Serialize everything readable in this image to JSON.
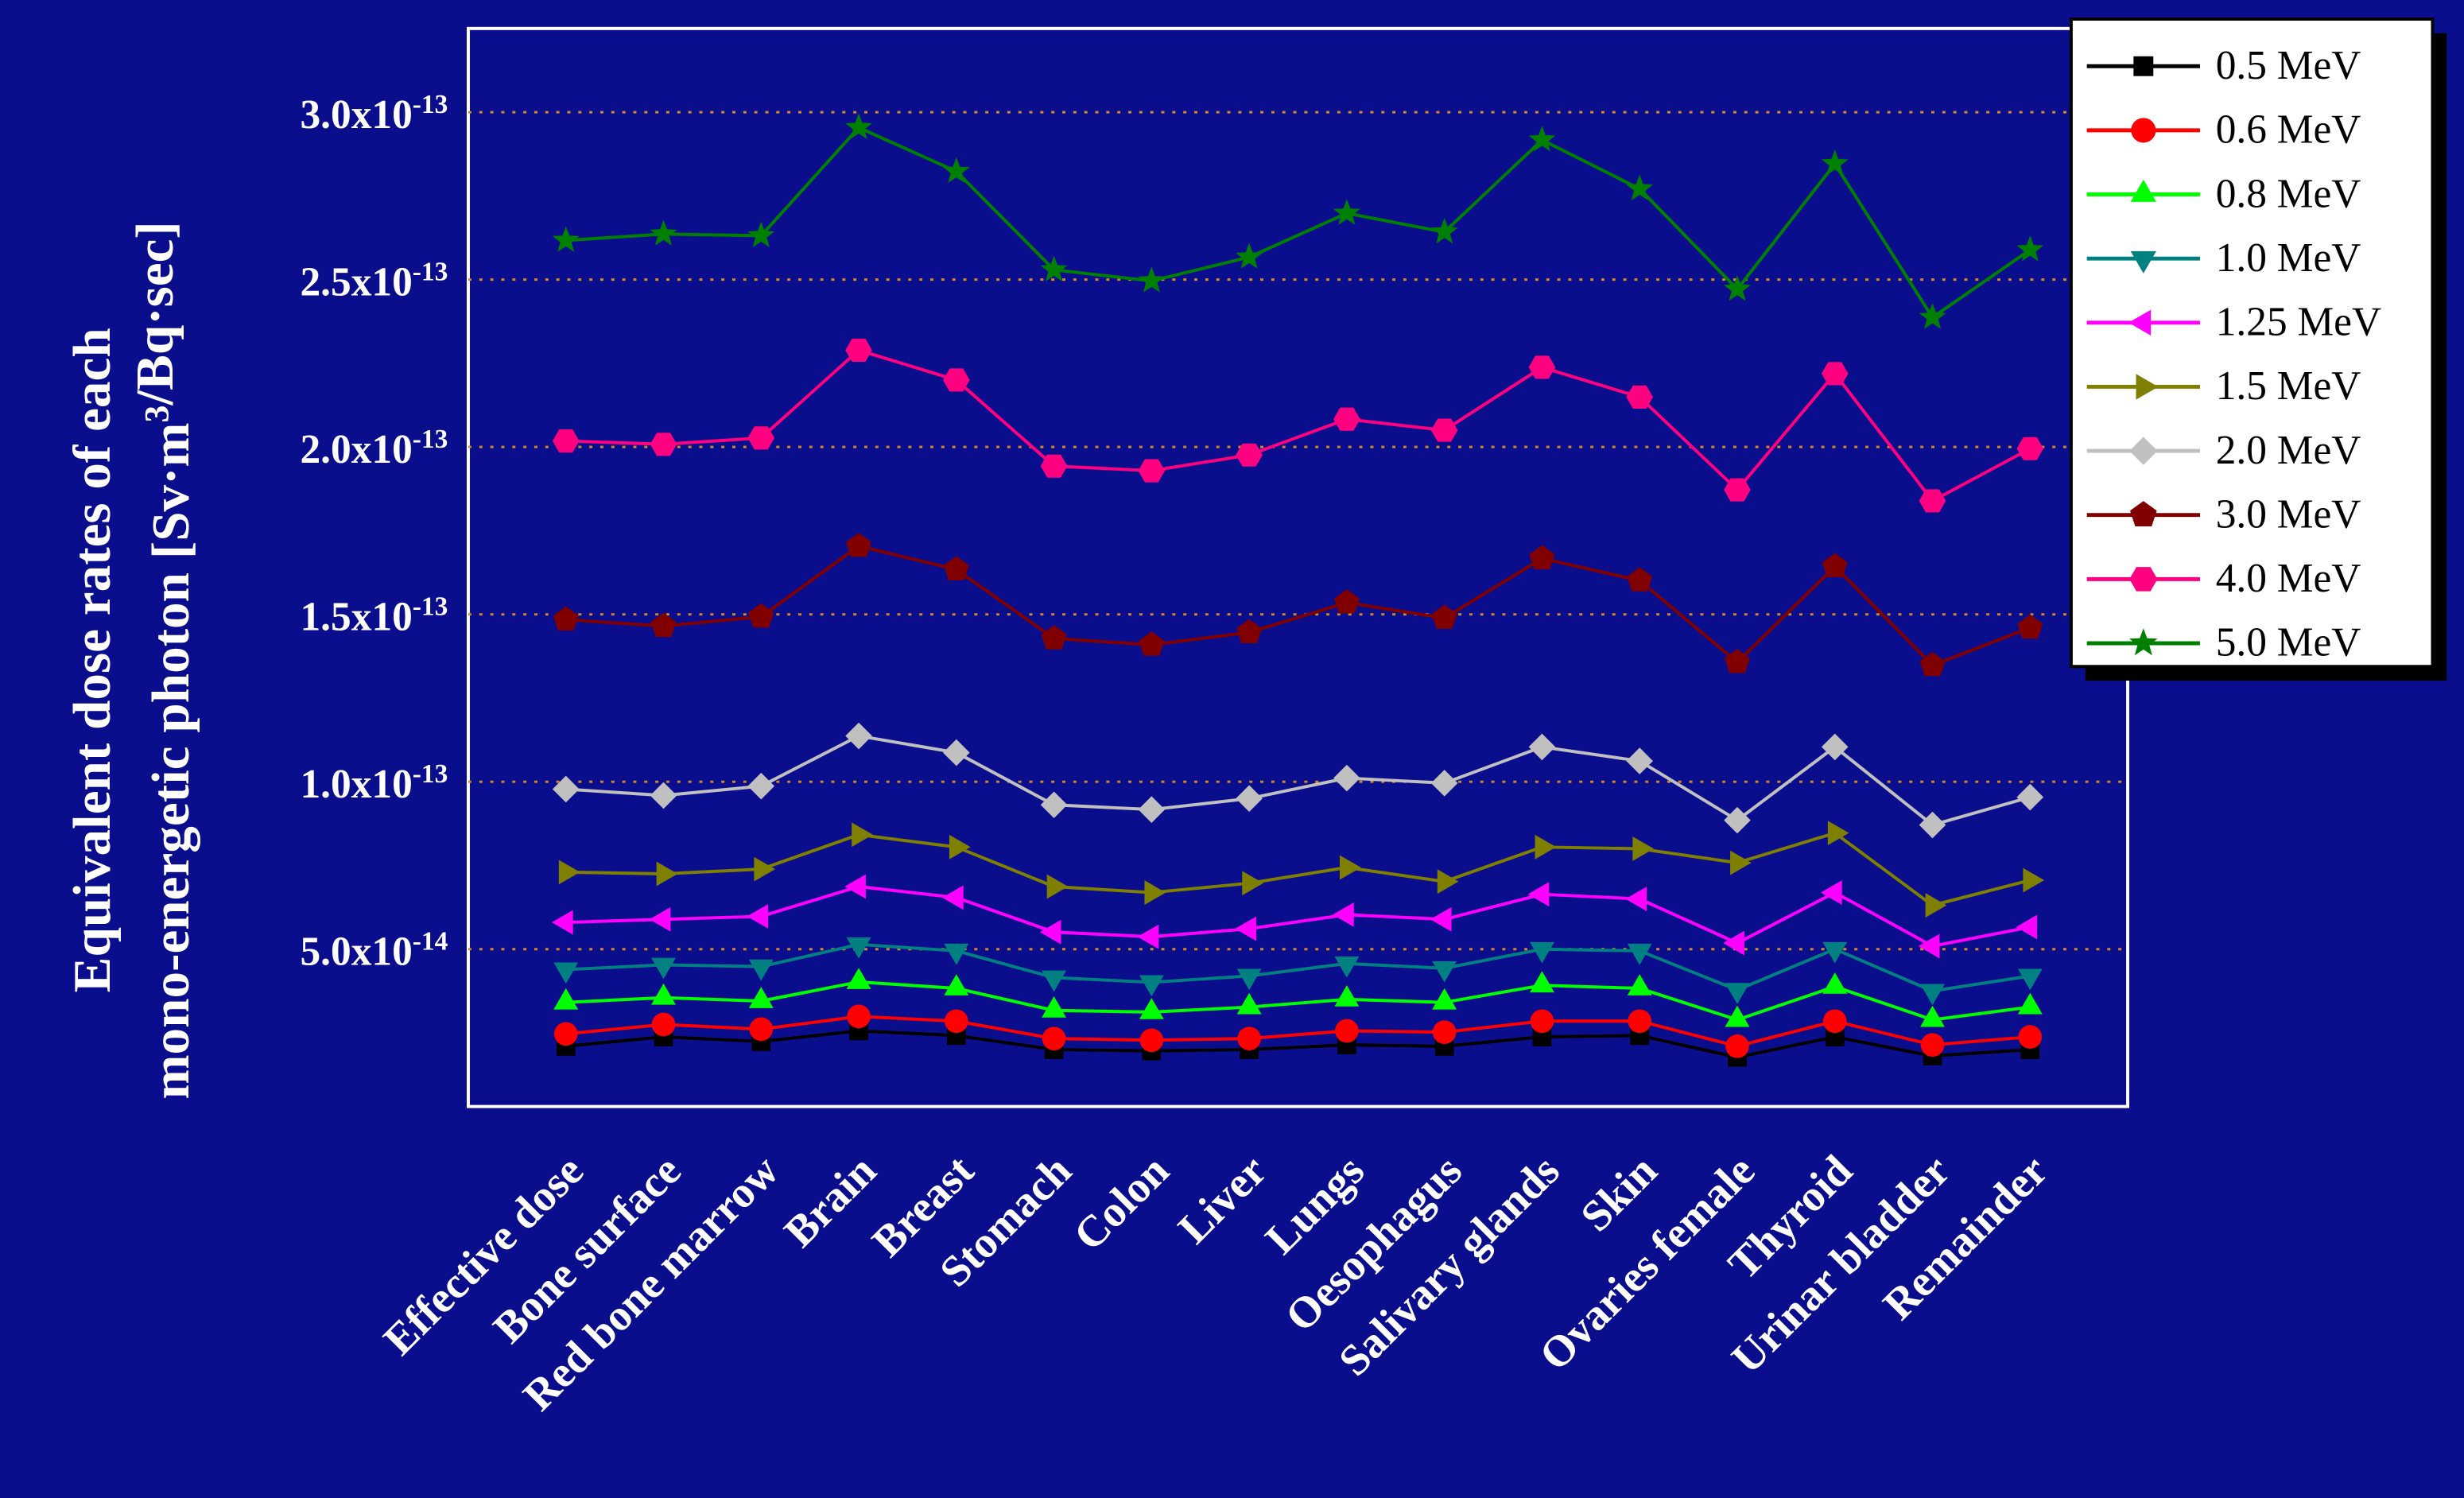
{
  "chart_data": {
    "type": "line",
    "y_label": [
      "Equivalent dose rates of each",
      "mono-energetic photon [Sv·m3/Bq·sec]"
    ],
    "categories": [
      "Effective dose",
      "Bone surface",
      "Red bone marrow",
      "Brain",
      "Breast",
      "Stomach",
      "Colon",
      "Liver",
      "Lungs",
      "Oesophagus",
      "Salivary glands",
      "Skin",
      "Ovaries female",
      "Thyroid",
      "Urinar bladder",
      "Remainder"
    ],
    "ylim": [
      3e-15,
      3.25e-13
    ],
    "yticks": [
      {
        "value": 5e-14,
        "label": "5.0x10-14"
      },
      {
        "value": 1e-13,
        "label": "1.0x10-13"
      },
      {
        "value": 1.5e-13,
        "label": "1.5x10-13"
      },
      {
        "value": 2e-13,
        "label": "2.0x10-13"
      },
      {
        "value": 2.5e-13,
        "label": "2.5x10-13"
      },
      {
        "value": 3e-13,
        "label": "3.0x10-13"
      }
    ],
    "grid": true,
    "legend": "upper right",
    "series": [
      {
        "name": "0.5 MeV",
        "color": "#000000",
        "marker": "square",
        "values": [
          2.1e-14,
          2.38e-14,
          2.24e-14,
          2.56e-14,
          2.42e-14,
          2e-14,
          1.96e-14,
          2e-14,
          2.14e-14,
          2.1e-14,
          2.38e-14,
          2.42e-14,
          1.77e-14,
          2.38e-14,
          1.81e-14,
          2e-14
        ]
      },
      {
        "name": "0.6 MeV",
        "color": "#ff0000",
        "marker": "circle",
        "values": [
          2.47e-14,
          2.75e-14,
          2.61e-14,
          2.99e-14,
          2.85e-14,
          2.33e-14,
          2.28e-14,
          2.33e-14,
          2.56e-14,
          2.52e-14,
          2.85e-14,
          2.85e-14,
          2.1e-14,
          2.85e-14,
          2.14e-14,
          2.38e-14
        ]
      },
      {
        "name": "0.8 MeV",
        "color": "#00ff00",
        "marker": "triangle-up",
        "values": [
          3.41e-14,
          3.55e-14,
          3.45e-14,
          4.02e-14,
          3.83e-14,
          3.17e-14,
          3.12e-14,
          3.27e-14,
          3.5e-14,
          3.41e-14,
          3.92e-14,
          3.83e-14,
          2.89e-14,
          3.88e-14,
          2.89e-14,
          3.27e-14
        ]
      },
      {
        "name": "1.0 MeV",
        "color": "#008080",
        "marker": "triangle-down",
        "values": [
          4.39e-14,
          4.53e-14,
          4.48e-14,
          5.14e-14,
          4.95e-14,
          4.15e-14,
          4.01e-14,
          4.2e-14,
          4.57e-14,
          4.43e-14,
          5e-14,
          4.95e-14,
          3.78e-14,
          5e-14,
          3.75e-14,
          4.2e-14
        ]
      },
      {
        "name": "1.25 MeV",
        "color": "#ff00ff",
        "marker": "triangle-left",
        "values": [
          5.8e-14,
          5.89e-14,
          5.98e-14,
          6.87e-14,
          6.54e-14,
          5.51e-14,
          5.37e-14,
          5.61e-14,
          6.03e-14,
          5.89e-14,
          6.64e-14,
          6.5e-14,
          5.18e-14,
          6.69e-14,
          5.09e-14,
          5.66e-14
        ]
      },
      {
        "name": "1.5 MeV",
        "color": "#808000",
        "marker": "triangle-right",
        "values": [
          7.3e-14,
          7.25e-14,
          7.39e-14,
          8.42e-14,
          8.05e-14,
          6.87e-14,
          6.69e-14,
          6.97e-14,
          7.44e-14,
          7.02e-14,
          8.05e-14,
          8e-14,
          7.58e-14,
          8.47e-14,
          6.31e-14,
          7.06e-14
        ]
      },
      {
        "name": "2.0 MeV",
        "color": "#c0c0c0",
        "marker": "diamond",
        "values": [
          9.78e-14,
          9.59e-14,
          9.87e-14,
          1.137e-13,
          1.087e-13,
          9.31e-14,
          9.17e-14,
          9.5e-14,
          1.011e-13,
          9.96e-14,
          1.104e-13,
          1.062e-13,
          8.85e-14,
          1.104e-13,
          8.71e-14,
          9.54e-14
        ]
      },
      {
        "name": "3.0 MeV",
        "color": "#800000",
        "marker": "pentagon",
        "values": [
          1.484e-13,
          1.465e-13,
          1.493e-13,
          1.704e-13,
          1.634e-13,
          1.428e-13,
          1.409e-13,
          1.446e-13,
          1.535e-13,
          1.489e-13,
          1.667e-13,
          1.601e-13,
          1.357e-13,
          1.643e-13,
          1.348e-13,
          1.46e-13
        ]
      },
      {
        "name": "4.0 MeV",
        "color": "#ff0080",
        "marker": "hexagon",
        "values": [
          2.018e-13,
          2.008e-13,
          2.027e-13,
          2.289e-13,
          2.2e-13,
          1.943e-13,
          1.929e-13,
          1.976e-13,
          2.083e-13,
          2.05e-13,
          2.238e-13,
          2.149e-13,
          1.872e-13,
          2.219e-13,
          1.839e-13,
          1.995e-13
        ]
      },
      {
        "name": "5.0 MeV",
        "color": "#008000",
        "marker": "star",
        "values": [
          2.617e-13,
          2.636e-13,
          2.631e-13,
          2.954e-13,
          2.823e-13,
          2.529e-13,
          2.496e-13,
          2.567e-13,
          2.698e-13,
          2.642e-13,
          2.917e-13,
          2.771e-13,
          2.471e-13,
          2.846e-13,
          2.387e-13,
          2.589e-13
        ]
      }
    ]
  }
}
